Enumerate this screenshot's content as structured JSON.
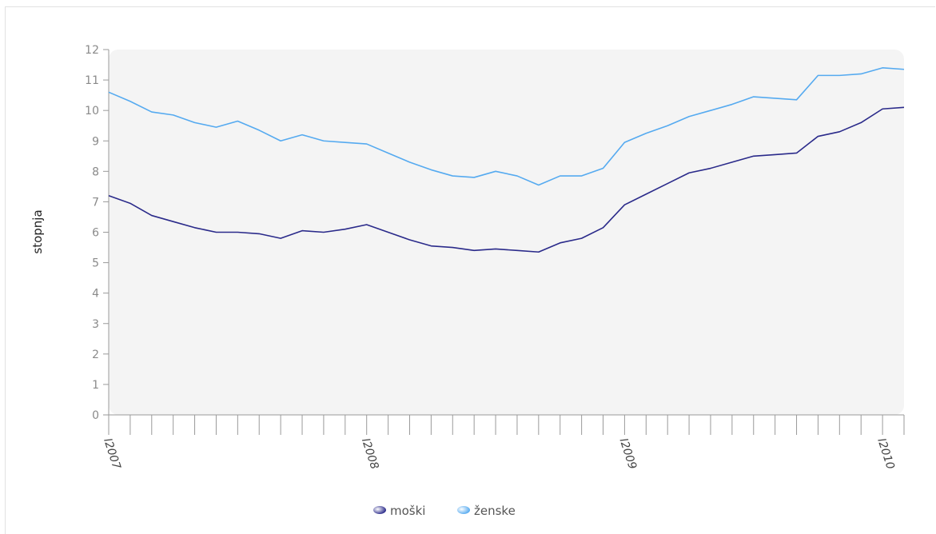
{
  "chart_data": {
    "type": "line",
    "ylabel": "stopnja",
    "xlabel": "",
    "ylim": [
      0,
      12
    ],
    "yticks": [
      0,
      1,
      2,
      3,
      4,
      5,
      6,
      7,
      8,
      9,
      10,
      11,
      12
    ],
    "x_tick_labels": [
      {
        "index": 0,
        "label": "I2007"
      },
      {
        "index": 12,
        "label": "I2008"
      },
      {
        "index": 24,
        "label": "I2009"
      },
      {
        "index": 36,
        "label": "I2010"
      }
    ],
    "point_count": 38,
    "legend_position": "bottom-center",
    "series": [
      {
        "name": "moški",
        "color": "#2a2a8a",
        "values": [
          7.2,
          6.95,
          6.55,
          6.35,
          6.15,
          6.0,
          6.0,
          5.95,
          5.8,
          6.05,
          6.0,
          6.1,
          6.25,
          6.0,
          5.75,
          5.55,
          5.5,
          5.4,
          5.45,
          5.4,
          5.35,
          5.65,
          5.8,
          6.15,
          6.9,
          7.25,
          7.6,
          7.95,
          8.1,
          8.3,
          8.5,
          8.55,
          8.6,
          9.15,
          9.3,
          9.6,
          10.05,
          10.1
        ]
      },
      {
        "name": "ženske",
        "color": "#55aaf0",
        "values": [
          10.6,
          10.3,
          9.95,
          9.85,
          9.6,
          9.45,
          9.65,
          9.35,
          9.0,
          9.2,
          9.0,
          8.95,
          8.9,
          8.6,
          8.3,
          8.05,
          7.85,
          7.8,
          8.0,
          7.85,
          7.55,
          7.85,
          7.85,
          8.1,
          8.95,
          9.25,
          9.5,
          9.8,
          10.0,
          10.2,
          10.45,
          10.4,
          10.35,
          11.15,
          11.15,
          11.2,
          11.4,
          11.35
        ]
      }
    ]
  }
}
